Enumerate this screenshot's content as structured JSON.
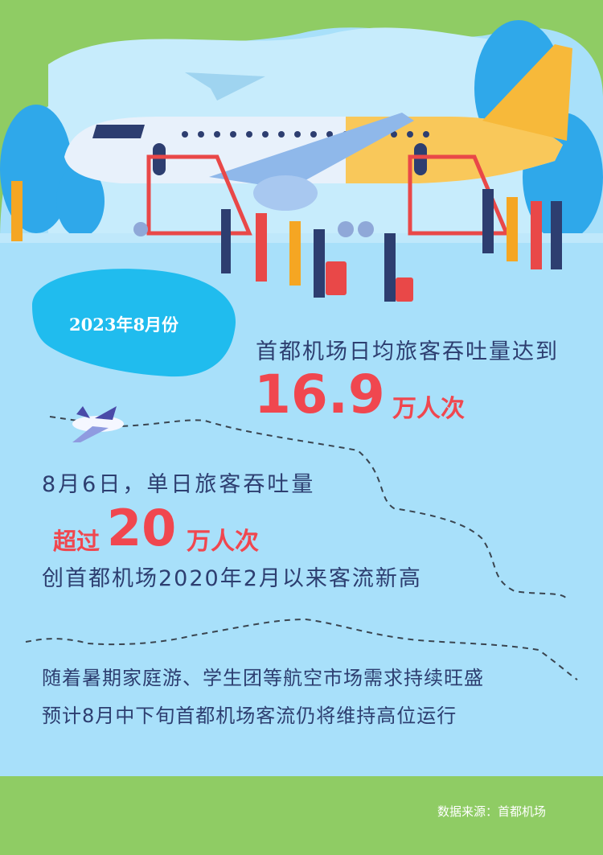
{
  "colors": {
    "sky": "#a8e0fa",
    "green": "#8fcc64",
    "blob": "#20bcee",
    "text": "#2d3e70",
    "accent": "#f0474f"
  },
  "badge": "2023年8月份",
  "stat1": {
    "text": "首都机场日均旅客吞吐量达到",
    "value": "16.9",
    "unit": "万人次"
  },
  "stat2": {
    "text": "8月6日，单日旅客吞吐量",
    "prefix": "超过",
    "value": "20",
    "unit": "万人次",
    "note": "创首都机场2020年2月以来客流新高"
  },
  "outlook": [
    "随着暑期家庭游、学生团等航空市场需求持续旺盛",
    "预计8月中下旬首都机场客流仍将维持高位运行"
  ],
  "source": "数据来源：首都机场",
  "illustration_icons": [
    "airplane-illustration",
    "passengers-illustration",
    "small-airplane-icon"
  ]
}
